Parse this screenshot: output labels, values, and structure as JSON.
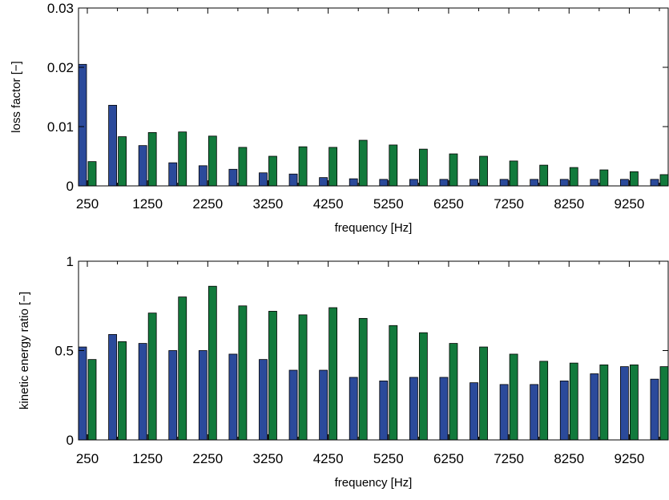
{
  "colors": {
    "series_a": "#2b4a9b",
    "series_b": "#127a3c",
    "axis": "#000000"
  },
  "chart_data": [
    {
      "type": "bar",
      "x": [
        250,
        750,
        1250,
        1750,
        2250,
        2750,
        3250,
        3750,
        4250,
        4750,
        5250,
        5750,
        6250,
        6750,
        7250,
        7750,
        8250,
        8750,
        9250,
        9750
      ],
      "xticks": [
        "250",
        "1250",
        "2250",
        "3250",
        "4250",
        "5250",
        "6250",
        "7250",
        "8250",
        "9250"
      ],
      "xlim": [
        250,
        9750
      ],
      "xlabel": "frequency [Hz]",
      "ylabel": "loss factor [−]",
      "ylim": [
        0,
        0.03
      ],
      "yticks": [
        "0",
        "0.01",
        "0.02",
        "0.03"
      ],
      "grid": false,
      "series": [
        {
          "values": [
            0.0205,
            0.0136,
            0.0068,
            0.0039,
            0.0034,
            0.0028,
            0.0022,
            0.002,
            0.0014,
            0.0012,
            0.0011,
            0.0011,
            0.0011,
            0.0011,
            0.0011,
            0.0011,
            0.0011,
            0.0011,
            0.0011,
            0.0011
          ]
        },
        {
          "values": [
            0.0041,
            0.0083,
            0.009,
            0.0091,
            0.0084,
            0.0065,
            0.005,
            0.0066,
            0.0065,
            0.0077,
            0.0069,
            0.0062,
            0.0054,
            0.005,
            0.0042,
            0.0035,
            0.0031,
            0.0027,
            0.0024,
            0.0019
          ]
        }
      ]
    },
    {
      "type": "bar",
      "x": [
        250,
        750,
        1250,
        1750,
        2250,
        2750,
        3250,
        3750,
        4250,
        4750,
        5250,
        5750,
        6250,
        6750,
        7250,
        7750,
        8250,
        8750,
        9250,
        9750
      ],
      "xticks": [
        "250",
        "1250",
        "2250",
        "3250",
        "4250",
        "5250",
        "6250",
        "7250",
        "8250",
        "9250"
      ],
      "xlim": [
        250,
        9750
      ],
      "xlabel": "frequency [Hz]",
      "ylabel": "kinetic energy ratio [−]",
      "ylim": [
        0,
        1
      ],
      "yticks": [
        "0",
        "0.5",
        "1"
      ],
      "grid": false,
      "series": [
        {
          "values": [
            0.52,
            0.59,
            0.54,
            0.5,
            0.5,
            0.48,
            0.45,
            0.39,
            0.39,
            0.35,
            0.33,
            0.35,
            0.35,
            0.32,
            0.31,
            0.31,
            0.33,
            0.37,
            0.41,
            0.34
          ]
        },
        {
          "values": [
            0.45,
            0.55,
            0.71,
            0.8,
            0.86,
            0.75,
            0.72,
            0.7,
            0.74,
            0.68,
            0.64,
            0.6,
            0.54,
            0.52,
            0.48,
            0.44,
            0.43,
            0.42,
            0.42,
            0.41
          ]
        }
      ]
    }
  ]
}
